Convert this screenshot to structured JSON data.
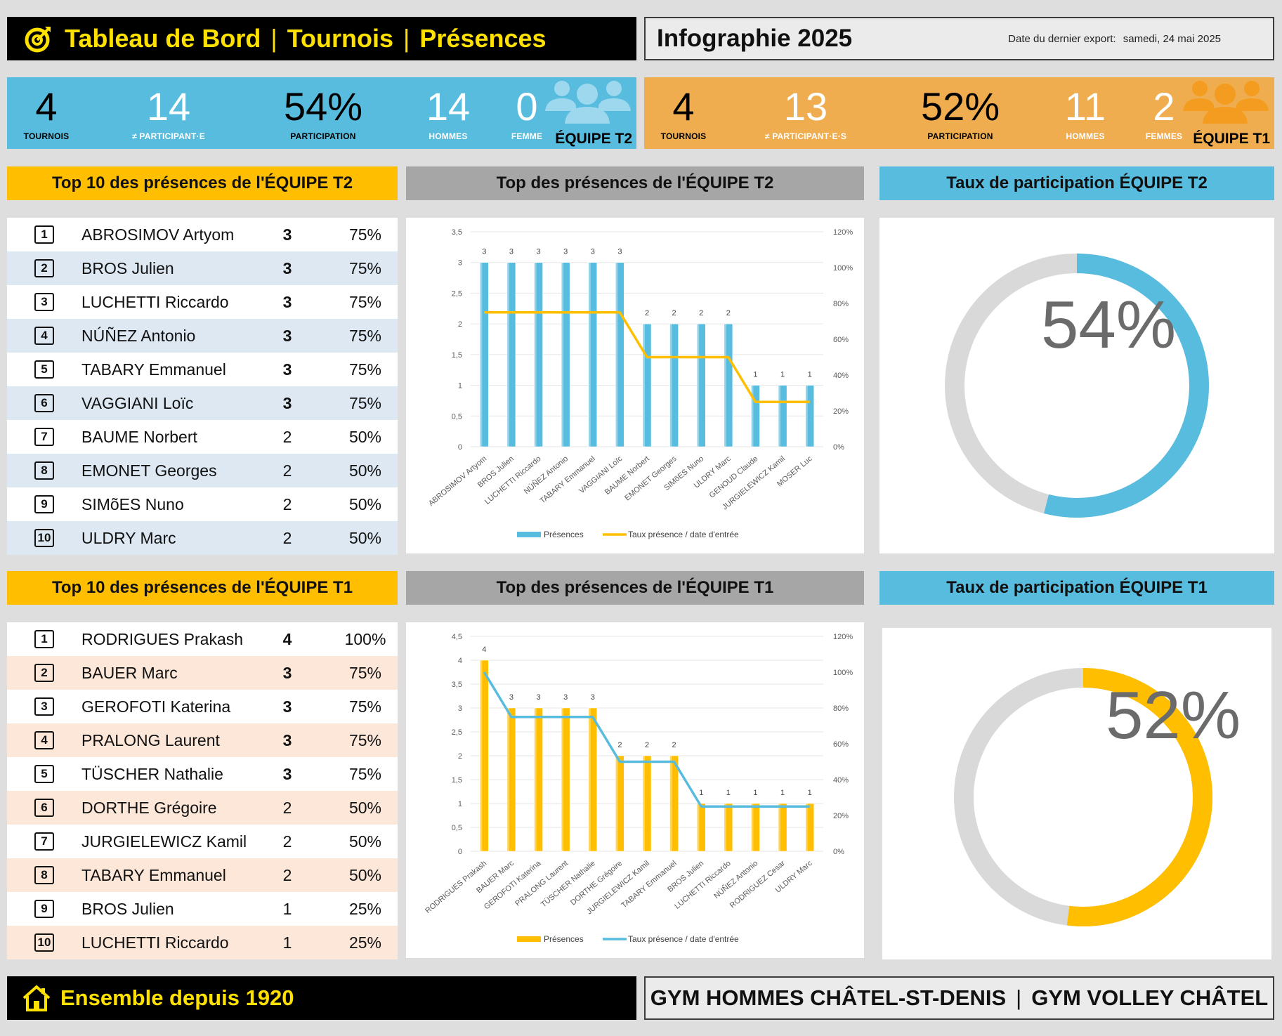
{
  "header": {
    "title_parts": [
      "Tableau de Bord",
      "Tournois",
      "Présences"
    ],
    "separator": "|",
    "infographie": "Infographie 2025",
    "export_label": "Date du dernier export:",
    "export_date": "samedi, 24 mai 2025"
  },
  "kpi_t2": {
    "tournois": "4",
    "tournois_label": "TOURNOIS",
    "participants": "14",
    "participants_label": "≠ PARTICIPANT·E",
    "participation": "54%",
    "participation_label": "PARTICIPATION",
    "hommes": "14",
    "hommes_label": "HOMMES",
    "femmes": "0",
    "femmes_label": "FEMME",
    "team": "ÉQUIPE T2"
  },
  "kpi_t1": {
    "tournois": "4",
    "tournois_label": "TOURNOIS",
    "participants": "13",
    "participants_label": "≠ PARTICIPANT·E·S",
    "participation": "52%",
    "participation_label": "PARTICIPATION",
    "hommes": "11",
    "hommes_label": "HOMMES",
    "femmes": "2",
    "femmes_label": "FEMMES",
    "team": "ÉQUIPE T1"
  },
  "sections": {
    "top10_t2": "Top 10 des présences de l'ÉQUIPE T2",
    "chart_t2": "Top des présences de l'ÉQUIPE T2",
    "taux_t2": "Taux de participation ÉQUIPE T2",
    "top10_t1": "Top 10 des présences de l'ÉQUIPE T1",
    "chart_t1": "Top des présences de l'ÉQUIPE T1",
    "taux_t1": "Taux de participation ÉQUIPE T1"
  },
  "top10_t2": [
    {
      "rank": "1",
      "name": "ABROSIMOV Artyom",
      "count": "3",
      "pct": "75%"
    },
    {
      "rank": "2",
      "name": "BROS Julien",
      "count": "3",
      "pct": "75%"
    },
    {
      "rank": "3",
      "name": "LUCHETTI Riccardo",
      "count": "3",
      "pct": "75%"
    },
    {
      "rank": "4",
      "name": "NÚÑEZ Antonio",
      "count": "3",
      "pct": "75%"
    },
    {
      "rank": "5",
      "name": "TABARY Emmanuel",
      "count": "3",
      "pct": "75%"
    },
    {
      "rank": "6",
      "name": "VAGGIANI Loïc",
      "count": "3",
      "pct": "75%"
    },
    {
      "rank": "7",
      "name": "BAUME Norbert",
      "count": "2",
      "pct": "50%"
    },
    {
      "rank": "8",
      "name": "EMONET Georges",
      "count": "2",
      "pct": "50%"
    },
    {
      "rank": "9",
      "name": "SIMõES Nuno",
      "count": "2",
      "pct": "50%"
    },
    {
      "rank": "10",
      "name": "ULDRY Marc",
      "count": "2",
      "pct": "50%"
    }
  ],
  "top10_t1": [
    {
      "rank": "1",
      "name": "RODRIGUES Prakash",
      "count": "4",
      "pct": "100%"
    },
    {
      "rank": "2",
      "name": "BAUER Marc",
      "count": "3",
      "pct": "75%"
    },
    {
      "rank": "3",
      "name": "GEROFOTI Katerina",
      "count": "3",
      "pct": "75%"
    },
    {
      "rank": "4",
      "name": "PRALONG Laurent",
      "count": "3",
      "pct": "75%"
    },
    {
      "rank": "5",
      "name": "TÜSCHER Nathalie",
      "count": "3",
      "pct": "75%"
    },
    {
      "rank": "6",
      "name": "DORTHE Grégoire",
      "count": "2",
      "pct": "50%"
    },
    {
      "rank": "7",
      "name": "JURGIELEWICZ Kamil",
      "count": "2",
      "pct": "50%"
    },
    {
      "rank": "8",
      "name": "TABARY Emmanuel",
      "count": "2",
      "pct": "50%"
    },
    {
      "rank": "9",
      "name": "BROS Julien",
      "count": "1",
      "pct": "25%"
    },
    {
      "rank": "10",
      "name": "LUCHETTI Riccardo",
      "count": "1",
      "pct": "25%"
    }
  ],
  "donut_t2": {
    "pct_label": "54%",
    "value": 0.54,
    "color": "#58bcdf"
  },
  "donut_t1": {
    "pct_label": "52%",
    "value": 0.52,
    "color": "#ffbf00"
  },
  "footer": {
    "motto": "Ensemble depuis 1920",
    "club1": "GYM HOMMES CHÂTEL-ST-DENIS",
    "separator": "|",
    "club2": "GYM VOLLEY CHÂTEL"
  },
  "colors": {
    "blue": "#58bcdf",
    "orange": "#f0ad4f",
    "yellow": "#ffbf00",
    "black": "#000000",
    "title_yellow": "#ffe100"
  },
  "chart_data": [
    {
      "type": "bar",
      "categories": [
        "ABROSIMOV Artyom",
        "BROS Julien",
        "LUCHETTI Riccardo",
        "NÚÑEZ Antonio",
        "TABARY Emmanuel",
        "VAGGIANI Loïc",
        "BAUME Norbert",
        "EMONET Georges",
        "SIMõES Nuno",
        "ULDRY Marc",
        "GENOUD Claude",
        "JURGIELEWICZ Kamil",
        "MOSER Luc"
      ],
      "series": [
        {
          "name": "Présences",
          "type": "bar",
          "axis": "left",
          "values": [
            3,
            3,
            3,
            3,
            3,
            3,
            2,
            2,
            2,
            2,
            1,
            1,
            1
          ],
          "color": "#58bcdf"
        },
        {
          "name": "Taux présence / date d'entrée",
          "type": "line",
          "axis": "right",
          "values": [
            75,
            75,
            75,
            75,
            75,
            75,
            50,
            50,
            50,
            50,
            25,
            25,
            25
          ],
          "color": "#ffbf00"
        }
      ],
      "left_ticks": [
        "0",
        "0,5",
        "1",
        "1,5",
        "2",
        "2,5",
        "3",
        "3,5"
      ],
      "right_ticks": [
        "0%",
        "20%",
        "40%",
        "60%",
        "80%",
        "100%",
        "120%"
      ],
      "ylim": [
        0,
        3.5
      ],
      "y2lim": [
        0,
        120
      ]
    },
    {
      "type": "bar",
      "categories": [
        "RODRIGUES Prakash",
        "BAUER Marc",
        "GEROFOTI Katerina",
        "PRALONG Laurent",
        "TÜSCHER Nathalie",
        "DORTHE Grégoire",
        "JURGIELEWICZ Kamil",
        "TABARY Emmanuel",
        "BROS Julien",
        "LUCHETTI Riccardo",
        "NÚÑEZ Antonio",
        "RODRIGUEZ Cesar",
        "ULDRY Marc"
      ],
      "series": [
        {
          "name": "Présences",
          "type": "bar",
          "axis": "left",
          "values": [
            4,
            3,
            3,
            3,
            3,
            2,
            2,
            2,
            1,
            1,
            1,
            1,
            1
          ],
          "color": "#ffbf00"
        },
        {
          "name": "Taux présence / date d'entrée",
          "type": "line",
          "axis": "right",
          "values": [
            100,
            75,
            75,
            75,
            75,
            50,
            50,
            50,
            25,
            25,
            25,
            25,
            25
          ],
          "color": "#58bcdf"
        }
      ],
      "left_ticks": [
        "0",
        "0,5",
        "1",
        "1,5",
        "2",
        "2,5",
        "3",
        "3,5",
        "4",
        "4,5"
      ],
      "right_ticks": [
        "0%",
        "20%",
        "40%",
        "60%",
        "80%",
        "100%",
        "120%"
      ],
      "ylim": [
        0,
        4.5
      ],
      "y2lim": [
        0,
        120
      ]
    }
  ]
}
